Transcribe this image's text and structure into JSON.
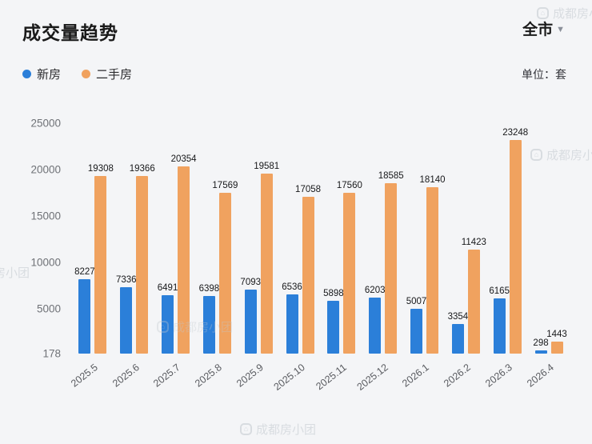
{
  "header": {
    "title": "成交量趋势",
    "city": "全市",
    "caret": "▼",
    "unit": "单位：套"
  },
  "watermark": {
    "text": "成都房小团",
    "icon": "⌂"
  },
  "chart_data": {
    "type": "bar",
    "title": "成交量趋势",
    "categories": [
      "2025.5",
      "2025.6",
      "2025.7",
      "2025.8",
      "2025.9",
      "2025.10",
      "2025.11",
      "2025.12",
      "2026.1",
      "2026.2",
      "2026.3",
      "2026.4"
    ],
    "series": [
      {
        "name": "新房",
        "color": "#2b7fd9",
        "values": [
          8227,
          7336,
          6491,
          6398,
          7093,
          6536,
          5898,
          6203,
          5007,
          3354,
          6165,
          298
        ]
      },
      {
        "name": "二手房",
        "color": "#f0a25f",
        "values": [
          19308,
          19366,
          20354,
          17569,
          19581,
          17058,
          17560,
          18585,
          18140,
          11423,
          23248,
          1443
        ]
      }
    ],
    "yticks": [
      25000,
      20000,
      15000,
      10000,
      5000,
      178
    ],
    "ymin": 178,
    "ymax": 26500,
    "grid": false,
    "legend_position": "top-left",
    "xlabel": "",
    "ylabel": "单位：套"
  }
}
